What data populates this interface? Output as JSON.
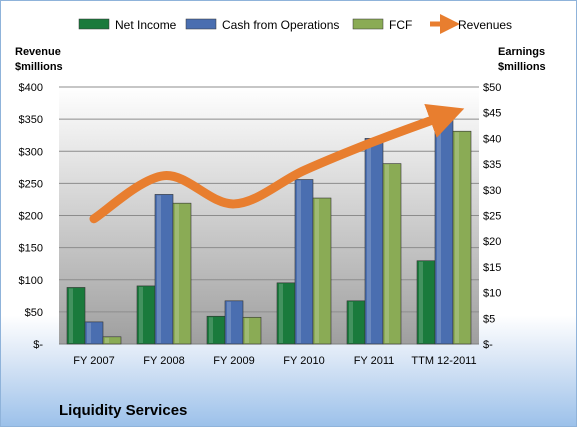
{
  "chart_data": {
    "type": "bar",
    "categories": [
      "FY 2007",
      "FY 2008",
      "FY 2009",
      "FY 2010",
      "FY 2011",
      "TTM 12-2011"
    ],
    "series": [
      {
        "name": "Net Income",
        "axis": "right",
        "color": "#1a7a3c",
        "values": [
          11,
          11.3,
          5.4,
          11.9,
          8.4,
          16.2
        ]
      },
      {
        "name": "Cash from Operations",
        "axis": "right",
        "color": "#4a6eb0",
        "values": [
          4.3,
          29.1,
          8.4,
          32.0,
          40.0,
          45.5
        ]
      },
      {
        "name": "FCF",
        "axis": "right",
        "color": "#8aab55",
        "values": [
          1.4,
          27.4,
          5.2,
          28.4,
          35.1,
          41.4
        ]
      },
      {
        "name": "Revenues",
        "axis": "left",
        "type": "line",
        "color": "#e87e2f",
        "values": [
          195,
          262,
          218,
          270,
          315,
          355
        ]
      }
    ],
    "ylabel": "Revenue\n$millions",
    "y2label": "Earnings\n$millions",
    "ylim": [
      0,
      400
    ],
    "y2lim": [
      0,
      50
    ],
    "yticks": [
      "$-",
      "$50",
      "$100",
      "$150",
      "$200",
      "$250",
      "$300",
      "$350",
      "$400"
    ],
    "y2ticks": [
      "$-",
      "$5",
      "$10",
      "$15",
      "$20",
      "$25",
      "$30",
      "$35",
      "$40",
      "$45",
      "$50"
    ],
    "legend_position": "top",
    "grid": true,
    "title": "Liquidity Services"
  }
}
